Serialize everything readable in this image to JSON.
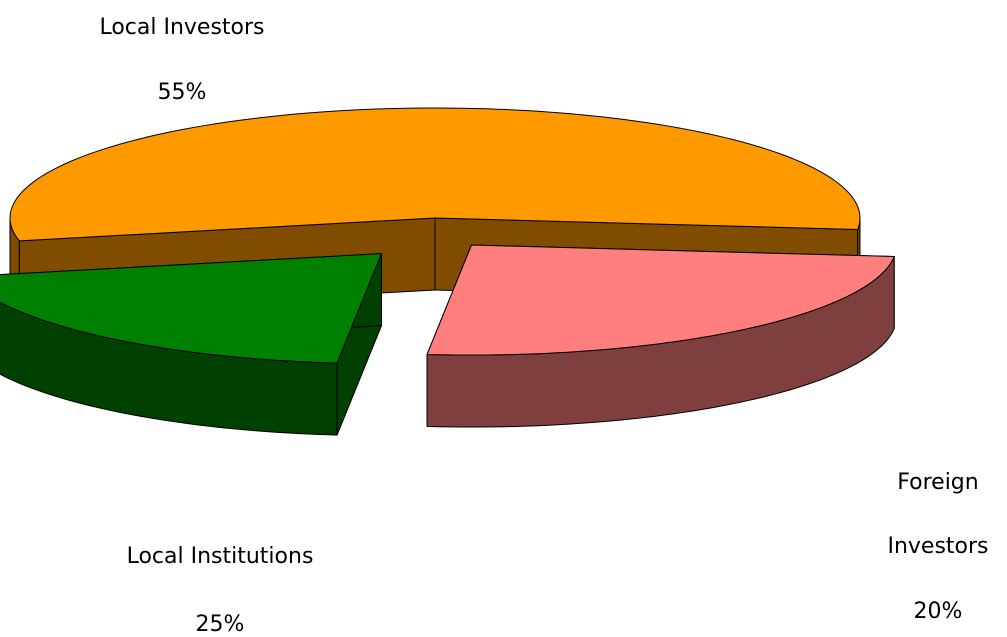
{
  "chart_data": {
    "type": "pie",
    "categories": [
      "Local Investors",
      "Local Institutions",
      "Foreign Investors"
    ],
    "values": [
      55,
      25,
      20
    ],
    "value_labels": [
      "55%",
      "25%",
      "20%"
    ],
    "colors": [
      "#FF9900",
      "#FF7F7F",
      "#008000"
    ]
  }
}
